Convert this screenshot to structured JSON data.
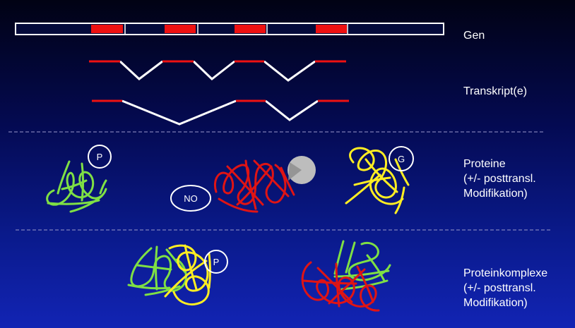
{
  "colors": {
    "exon": "#ee1111",
    "intron": "#ffffff",
    "green_chain": "#7fe044",
    "red_chain": "#e01414",
    "yellow_chain": "#ffee22",
    "ligand": "#bdbdbd",
    "divider": "#9a9acc"
  },
  "labels": {
    "gene": "Gen",
    "transcripts": "Transkript(e)",
    "proteins": "Proteine\n(+/- posttransl.\nModifikation)",
    "complexes": "Proteinkomplexe\n(+/- posttransl.\nModifikation)"
  },
  "modifications": {
    "phospho_1": "P",
    "no_mod": "NO",
    "glyco": "G",
    "phospho_2": "P"
  },
  "icons": {
    "ligand": "grey-ligand-circle-icon"
  }
}
